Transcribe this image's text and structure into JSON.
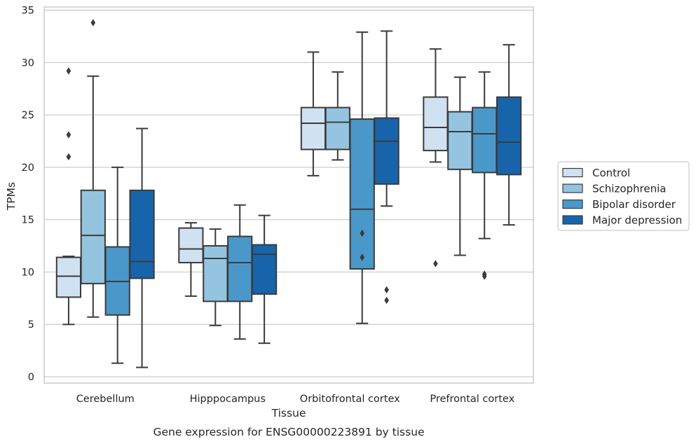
{
  "chart_data": {
    "type": "box",
    "xlabel": "Tissue",
    "ylabel": "TPMs",
    "caption": "Gene expression for ENSG00000223891 by tissue",
    "ylim": [
      -0.6,
      35.3
    ],
    "yticks": [
      0,
      5,
      10,
      15,
      20,
      25,
      30,
      35
    ],
    "ytick_labels": [
      "0",
      "5",
      "10",
      "15",
      "20",
      "25",
      "30",
      "35"
    ],
    "grid": "horizontal",
    "legend_position": "right",
    "categories": [
      "Cerebellum",
      "Hipppocampus",
      "Orbitofrontal cortex",
      "Prefrontal cortex"
    ],
    "series": [
      {
        "name": "Control",
        "color": "#d0e1f2",
        "boxes": [
          {
            "whisker_low": 5.0,
            "q1": 7.6,
            "median": 9.6,
            "q3": 11.4,
            "whisker_high": 11.5,
            "outliers": [
              21.0,
              23.1,
              29.2
            ]
          },
          {
            "whisker_low": 7.7,
            "q1": 10.9,
            "median": 12.2,
            "q3": 14.2,
            "whisker_high": 14.7,
            "outliers": []
          },
          {
            "whisker_low": 19.2,
            "q1": 21.7,
            "median": 24.2,
            "q3": 25.7,
            "whisker_high": 31.0,
            "outliers": []
          },
          {
            "whisker_low": 20.5,
            "q1": 21.6,
            "median": 23.8,
            "q3": 26.7,
            "whisker_high": 31.3,
            "outliers": [
              10.8
            ]
          }
        ]
      },
      {
        "name": "Schizophrenia",
        "color": "#94c4df",
        "boxes": [
          {
            "whisker_low": 5.7,
            "q1": 8.9,
            "median": 13.5,
            "q3": 17.8,
            "whisker_high": 28.7,
            "outliers": [
              33.8
            ]
          },
          {
            "whisker_low": 4.9,
            "q1": 7.2,
            "median": 11.3,
            "q3": 12.5,
            "whisker_high": 14.1,
            "outliers": []
          },
          {
            "whisker_low": 20.7,
            "q1": 21.7,
            "median": 24.3,
            "q3": 25.7,
            "whisker_high": 29.1,
            "outliers": []
          },
          {
            "whisker_low": 11.6,
            "q1": 19.8,
            "median": 23.4,
            "q3": 25.3,
            "whisker_high": 28.6,
            "outliers": []
          }
        ]
      },
      {
        "name": "Bipolar disorder",
        "color": "#4a98c9",
        "boxes": [
          {
            "whisker_low": 1.3,
            "q1": 5.9,
            "median": 9.1,
            "q3": 12.4,
            "whisker_high": 20.0,
            "outliers": []
          },
          {
            "whisker_low": 3.6,
            "q1": 7.2,
            "median": 10.9,
            "q3": 13.4,
            "whisker_high": 16.4,
            "outliers": []
          },
          {
            "whisker_low": 5.1,
            "q1": 10.3,
            "median": 16.0,
            "q3": 24.6,
            "whisker_high": 32.9,
            "outliers": [
              11.4,
              13.7
            ]
          },
          {
            "whisker_low": 13.2,
            "q1": 19.5,
            "median": 23.2,
            "q3": 25.7,
            "whisker_high": 29.1,
            "outliers": [
              9.6,
              9.8
            ]
          }
        ]
      },
      {
        "name": "Major depression",
        "color": "#1764ab",
        "boxes": [
          {
            "whisker_low": 0.9,
            "q1": 9.4,
            "median": 11.0,
            "q3": 17.8,
            "whisker_high": 23.7,
            "outliers": []
          },
          {
            "whisker_low": 3.2,
            "q1": 7.9,
            "median": 11.7,
            "q3": 12.6,
            "whisker_high": 15.4,
            "outliers": []
          },
          {
            "whisker_low": 16.3,
            "q1": 18.4,
            "median": 22.5,
            "q3": 24.7,
            "whisker_high": 33.0,
            "outliers": [
              7.3,
              8.3
            ]
          },
          {
            "whisker_low": 14.5,
            "q1": 19.3,
            "median": 22.4,
            "q3": 26.7,
            "whisker_high": 31.7,
            "outliers": []
          }
        ]
      }
    ]
  }
}
